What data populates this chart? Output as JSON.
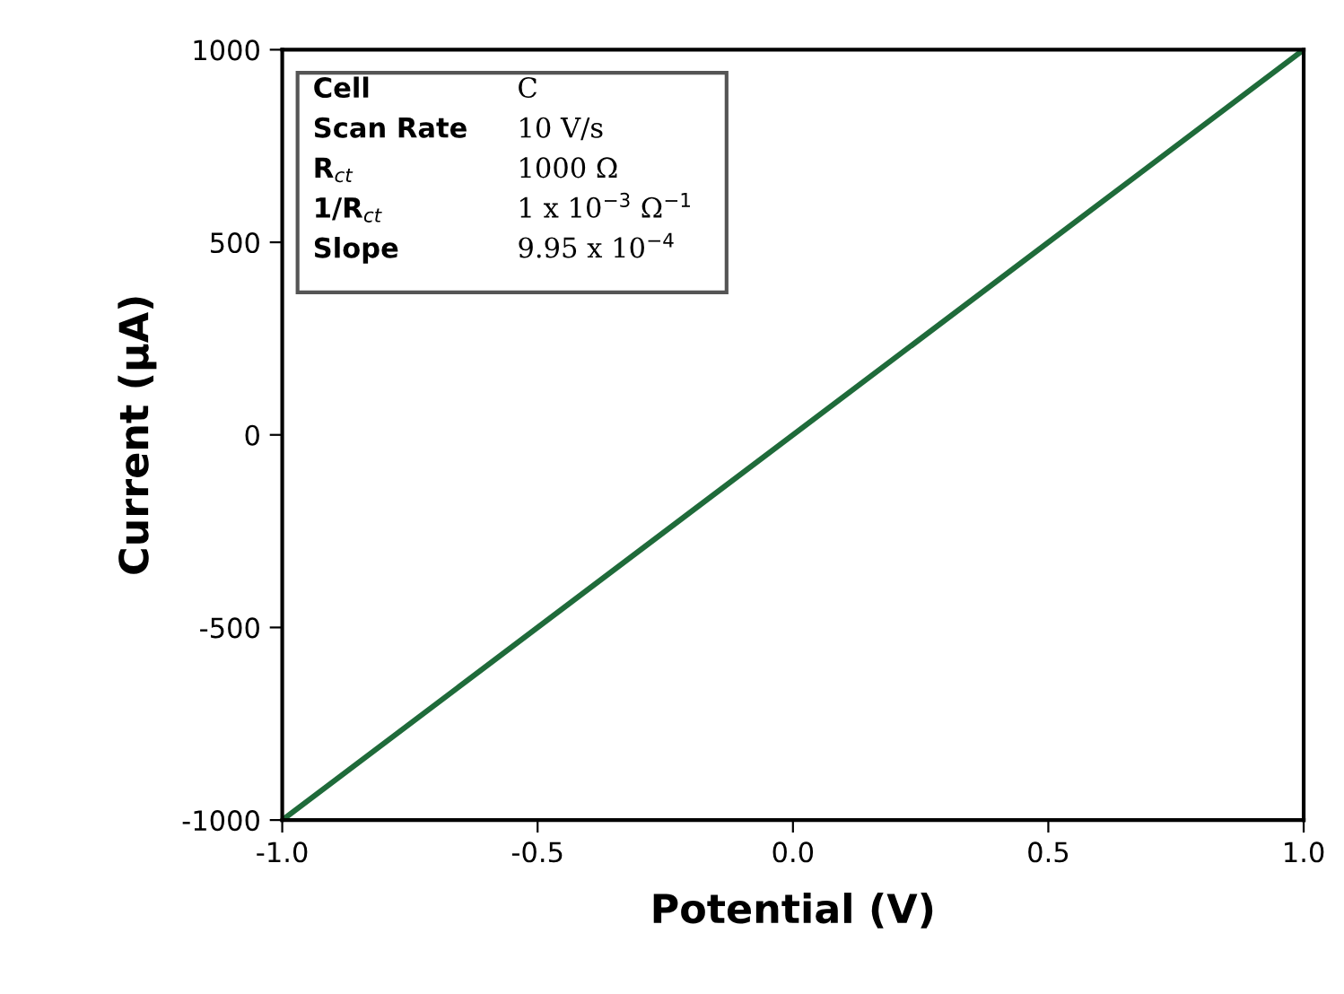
{
  "chart_data": {
    "type": "line",
    "xlabel": "Potential (V)",
    "ylabel": "Current (µA)",
    "x": [
      -1.0,
      1.0
    ],
    "series": [
      {
        "color": "#1f6b3a",
        "values": [
          -1000,
          1000
        ]
      }
    ],
    "xlim": [
      -1.0,
      1.0
    ],
    "ylim": [
      -1000,
      1000
    ],
    "xticks": [
      {
        "value": -1.0,
        "label": "-1.0"
      },
      {
        "value": -0.5,
        "label": "-0.5"
      },
      {
        "value": 0.0,
        "label": "0.0"
      },
      {
        "value": 0.5,
        "label": "0.5"
      },
      {
        "value": 1.0,
        "label": "1.0"
      }
    ],
    "yticks": [
      -1000,
      -500,
      0,
      500,
      1000
    ],
    "grid": false,
    "legend": false,
    "marker": "none",
    "line_style": "solid",
    "annotations": [
      "Cell",
      "C",
      "Scan Rate",
      "10 V/s",
      "R$_{ct}$",
      "1000 Ω",
      "1/R$_{ct}$",
      "1 x 10$^{−3}$ Ω$^{−1}$",
      "Slope",
      "9.95 x 10$^{−4}$"
    ]
  }
}
